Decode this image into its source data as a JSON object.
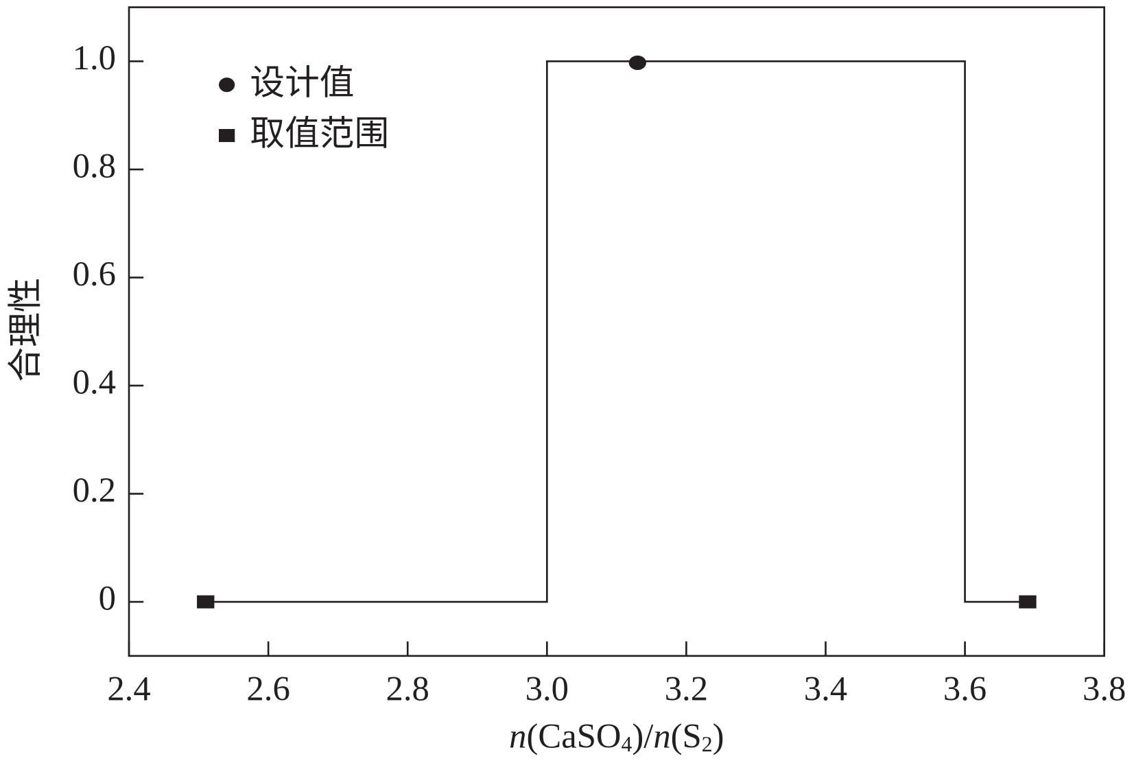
{
  "chart_data": {
    "type": "line",
    "xlabel": [
      {
        "text": "n",
        "style": "italic"
      },
      {
        "text": "(CaSO",
        "style": "normal"
      },
      {
        "text": "4",
        "style": "sub"
      },
      {
        "text": ")/",
        "style": "normal"
      },
      {
        "text": "n",
        "style": "italic"
      },
      {
        "text": "(S",
        "style": "normal"
      },
      {
        "text": "2",
        "style": "sub"
      },
      {
        "text": ")",
        "style": "normal"
      }
    ],
    "ylabel": "合理性",
    "xlim": [
      2.4,
      3.8
    ],
    "ylim": [
      -0.1,
      1.1
    ],
    "xticks": [
      2.4,
      2.6,
      2.8,
      {
        "value": 3,
        "label": "3.0"
      },
      3.2,
      3.4,
      3.6,
      3.8
    ],
    "yticks": [
      0,
      0.2,
      0.4,
      0.6,
      0.8,
      {
        "value": 1,
        "label": "1.0"
      }
    ],
    "legend": "upper left",
    "series": [
      {
        "type": "line",
        "color": "#231f20",
        "x": [
          2.51,
          3.0,
          3.0,
          3.6,
          3.6,
          3.69
        ],
        "values": [
          0,
          0,
          1,
          1,
          0,
          0
        ]
      },
      {
        "type": "scatter",
        "marker": "circle",
        "name": "设计值",
        "color": "#231f20",
        "x": [
          3.13
        ],
        "values": [
          1
        ]
      },
      {
        "type": "scatter",
        "marker": "square",
        "name": "取值范围",
        "color": "#231f20",
        "x": [
          2.51,
          3.69
        ],
        "values": [
          0,
          0
        ]
      }
    ]
  }
}
